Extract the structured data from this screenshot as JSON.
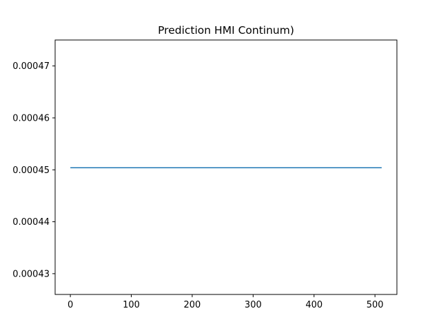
{
  "chart_data": {
    "type": "line",
    "title": "Prediction HMI Continum)",
    "xlabel": "",
    "ylabel": "",
    "xlim": [
      -25,
      536
    ],
    "ylim": [
      0.000426,
      0.000475
    ],
    "xticks": [
      0,
      100,
      200,
      300,
      400,
      500
    ],
    "xtick_labels": [
      "0",
      "100",
      "200",
      "300",
      "400",
      "500"
    ],
    "yticks": [
      0.00043,
      0.00044,
      0.00045,
      0.00046,
      0.00047
    ],
    "ytick_labels": [
      "0.00043",
      "0.00044",
      "0.00045",
      "0.00046",
      "0.00047"
    ],
    "grid": false,
    "series": [
      {
        "color": "#1f77b4",
        "x": [
          0,
          511
        ],
        "y": [
          0.0004504,
          0.0004504
        ]
      }
    ]
  }
}
